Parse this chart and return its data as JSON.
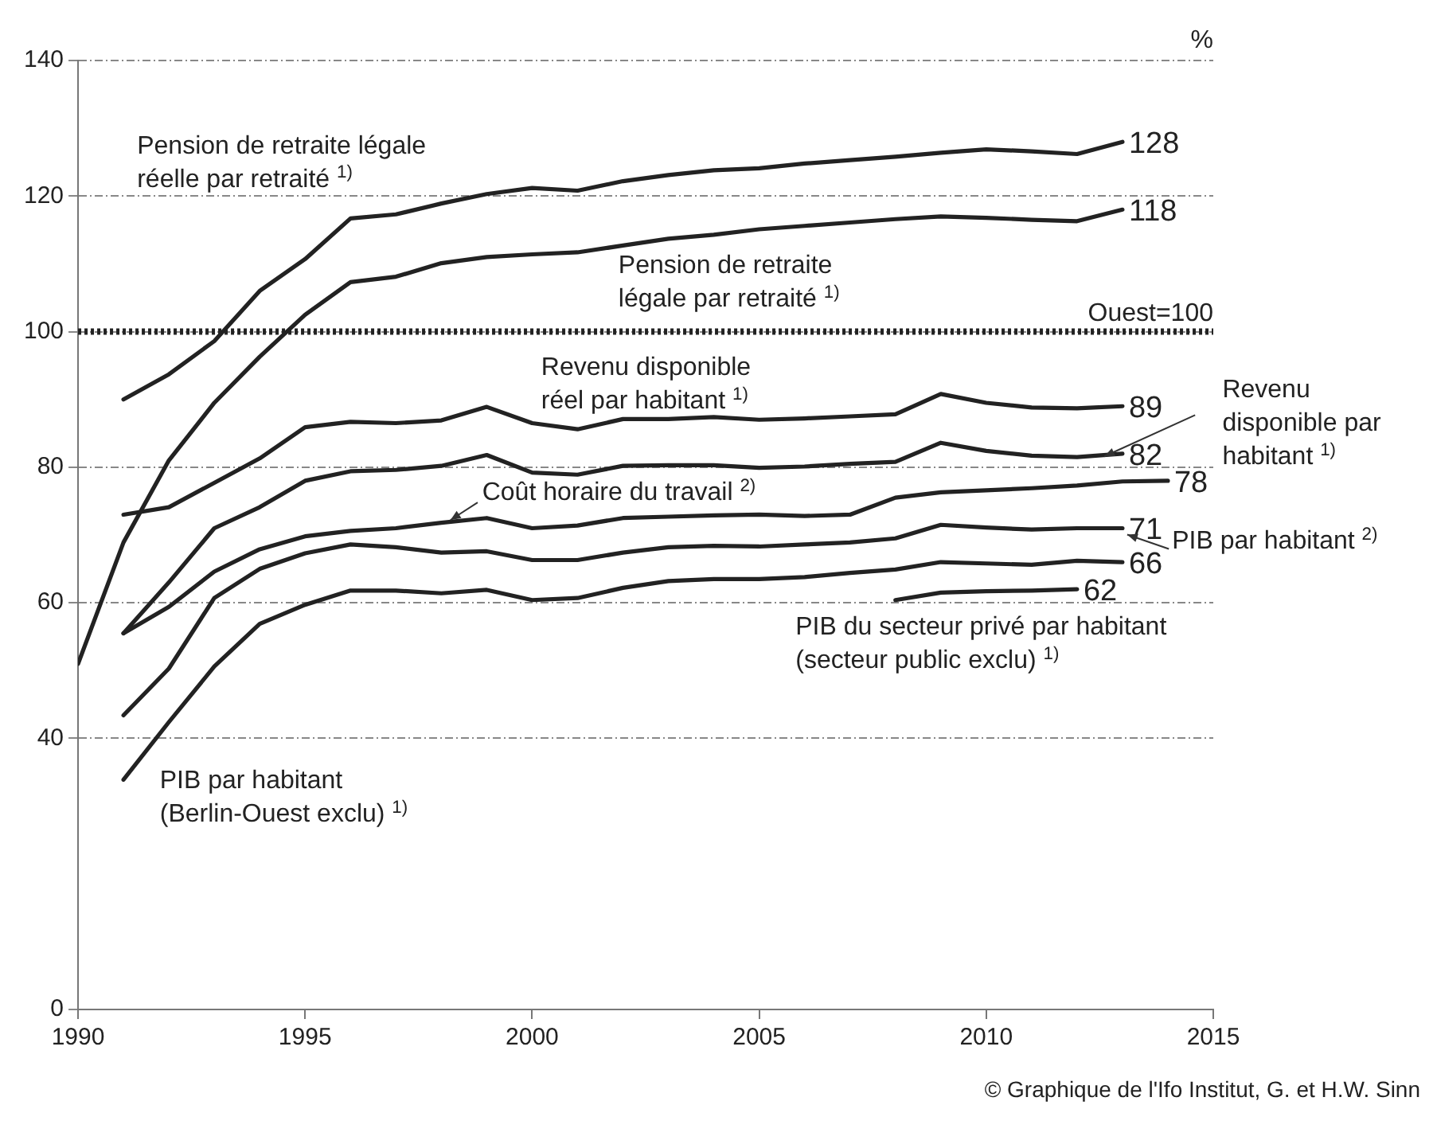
{
  "chart_data": {
    "type": "line",
    "series": [
      {
        "name": "Pension de retraite légale réelle par retraité $^{1)}$",
        "color": "#222222",
        "x": [
          1991,
          1992,
          1993,
          1994,
          1995,
          1996,
          1997,
          1998,
          1999,
          2000,
          2001,
          2002,
          2003,
          2004,
          2005,
          2006,
          2007,
          2008,
          2009,
          2010,
          2011,
          2012,
          2013
        ],
        "values": [
          90,
          93.7,
          98.6,
          106,
          110.7,
          116.7,
          117.3,
          118.9,
          120.3,
          121.2,
          120.8,
          122.2,
          123.1,
          123.8,
          124.1,
          124.8,
          125.3,
          125.8,
          126.4,
          126.9,
          126.6,
          126.2,
          128
        ],
        "value_labels": [
          null,
          null,
          null,
          null,
          null,
          null,
          null,
          null,
          null,
          null,
          null,
          null,
          null,
          null,
          null,
          null,
          null,
          null,
          null,
          null,
          null,
          null,
          "128"
        ]
      },
      {
        "name": "Pension de retraite légale par retraité $^{1)}$",
        "color": "#222222",
        "x": [
          1990,
          1991,
          1992,
          1993,
          1994,
          1995,
          1996,
          1997,
          1998,
          1999,
          2000,
          2001,
          2002,
          2003,
          2004,
          2005,
          2006,
          2007,
          2008,
          2009,
          2010,
          2011,
          2012,
          2013
        ],
        "values": [
          51,
          68.9,
          81,
          89.5,
          96.3,
          102.5,
          107.3,
          108.1,
          110.1,
          111,
          111.4,
          111.7,
          112.7,
          113.7,
          114.3,
          115.1,
          115.6,
          116.1,
          116.6,
          117,
          116.8,
          116.5,
          116.3,
          118
        ],
        "value_labels": [
          null,
          null,
          null,
          null,
          null,
          null,
          null,
          null,
          null,
          null,
          null,
          null,
          null,
          null,
          null,
          null,
          null,
          null,
          null,
          null,
          null,
          null,
          null,
          "118"
        ]
      },
      {
        "name": "Revenu disponible réel par habitant $^{1)}$",
        "color": "#222222",
        "x": [
          1991,
          1992,
          1993,
          1994,
          1995,
          1996,
          1997,
          1998,
          1999,
          2000,
          2001,
          2002,
          2003,
          2004,
          2005,
          2006,
          2007,
          2008,
          2009,
          2010,
          2011,
          2012,
          2013
        ],
        "values": [
          73,
          74.1,
          77.7,
          81.3,
          85.9,
          86.7,
          86.5,
          86.9,
          88.9,
          86.5,
          85.6,
          87.1,
          87.1,
          87.4,
          87,
          87.2,
          87.5,
          87.8,
          90.8,
          89.5,
          88.8,
          88.7,
          89
        ],
        "value_labels": [
          null,
          null,
          null,
          null,
          null,
          null,
          null,
          null,
          null,
          null,
          null,
          null,
          null,
          null,
          null,
          null,
          null,
          null,
          null,
          null,
          null,
          null,
          "89"
        ]
      },
      {
        "name": "Revenu disponible par habitant $^{1)}$",
        "color": "#222222",
        "x": [
          1991,
          1992,
          1993,
          1994,
          1995,
          1996,
          1997,
          1998,
          1999,
          2000,
          2001,
          2002,
          2003,
          2004,
          2005,
          2006,
          2007,
          2008,
          2009,
          2010,
          2011,
          2012,
          2013
        ],
        "values": [
          55.5,
          63,
          71,
          74.1,
          78,
          79.4,
          79.6,
          80.2,
          81.8,
          79.2,
          78.9,
          80.2,
          80.3,
          80.3,
          79.9,
          80.1,
          80.5,
          80.8,
          83.6,
          82.4,
          81.7,
          81.5,
          82
        ],
        "value_labels": [
          null,
          null,
          null,
          null,
          null,
          null,
          null,
          null,
          null,
          null,
          null,
          null,
          null,
          null,
          null,
          null,
          null,
          null,
          null,
          null,
          null,
          null,
          "82"
        ]
      },
      {
        "name": "Coût horaire du travail $^{2)}$",
        "color": "#222222",
        "x": [
          1991,
          1992,
          1993,
          1994,
          1995,
          1996,
          1997,
          1998,
          1999,
          2000,
          2001,
          2002,
          2003,
          2004,
          2005,
          2006,
          2007,
          2008,
          2009,
          2010,
          2011,
          2012,
          2013,
          2014
        ],
        "values": [
          55.5,
          59.4,
          64.6,
          67.9,
          69.8,
          70.6,
          71,
          71.8,
          72.5,
          71,
          71.4,
          72.5,
          72.7,
          72.9,
          73,
          72.8,
          73,
          75.5,
          76.3,
          76.6,
          76.9,
          77.3,
          77.9,
          78
        ],
        "value_labels": [
          null,
          null,
          null,
          null,
          null,
          null,
          null,
          null,
          null,
          null,
          null,
          null,
          null,
          null,
          null,
          null,
          null,
          null,
          null,
          null,
          null,
          null,
          null,
          "78"
        ]
      },
      {
        "name": "PIB par habitant $^{2)}$",
        "color": "#222222",
        "x": [
          1991,
          1992,
          1993,
          1994,
          1995,
          1996,
          1997,
          1998,
          1999,
          2000,
          2001,
          2002,
          2003,
          2004,
          2005,
          2006,
          2007,
          2008,
          2009,
          2010,
          2011,
          2012,
          2013
        ],
        "values": [
          43.4,
          50.3,
          60.7,
          65,
          67.3,
          68.6,
          68.2,
          67.4,
          67.6,
          66.3,
          66.3,
          67.4,
          68.2,
          68.4,
          68.3,
          68.6,
          68.9,
          69.5,
          71.5,
          71.1,
          70.8,
          71,
          71
        ],
        "value_labels": [
          null,
          null,
          null,
          null,
          null,
          null,
          null,
          null,
          null,
          null,
          null,
          null,
          null,
          null,
          null,
          null,
          null,
          null,
          null,
          null,
          null,
          null,
          "71"
        ]
      },
      {
        "name": "PIB par habitant (Berlin-Ouest exclu) $^{1)}$",
        "color": "#222222",
        "x": [
          1991,
          1992,
          1993,
          1994,
          1995,
          1996,
          1997,
          1998,
          1999,
          2000,
          2001,
          2002,
          2003,
          2004,
          2005,
          2006,
          2007,
          2008,
          2009,
          2010,
          2011,
          2012,
          2013
        ],
        "values": [
          33.9,
          42.4,
          50.6,
          56.9,
          59.7,
          61.8,
          61.8,
          61.4,
          61.9,
          60.4,
          60.7,
          62.2,
          63.2,
          63.5,
          63.5,
          63.8,
          64.4,
          64.9,
          66,
          65.8,
          65.6,
          66.2,
          66
        ],
        "value_labels": [
          null,
          null,
          null,
          null,
          null,
          null,
          null,
          null,
          null,
          null,
          null,
          null,
          null,
          null,
          null,
          null,
          null,
          null,
          null,
          null,
          null,
          null,
          "66"
        ]
      },
      {
        "name": "PIB du secteur privé par habitant (secteur public exclu) $^{1)}$",
        "color": "#222222",
        "x": [
          2008,
          2009,
          2010,
          2011,
          2012
        ],
        "values": [
          60.4,
          61.5,
          61.7,
          61.8,
          62
        ],
        "value_labels": [
          null,
          null,
          null,
          null,
          "62"
        ]
      }
    ],
    "ylabel": "%",
    "xlim": [
      1990,
      2015
    ],
    "xticks": [
      1990,
      1995,
      2000,
      2005,
      2010,
      2015
    ],
    "ylim": [
      0,
      140
    ],
    "yticks": [
      0,
      40,
      60,
      80,
      100,
      120,
      140
    ],
    "ref_lines": [
      {
        "axis": "y",
        "value": 100,
        "label": "Ouest=100",
        "color": "#222222",
        "line_style": "dotted"
      }
    ],
    "annotations": [
      "© Graphique de l'Ifo Institut, G. et H.W. Sinn"
    ],
    "grid": "y",
    "legend": false,
    "marker": "none",
    "line_style": "solid"
  }
}
